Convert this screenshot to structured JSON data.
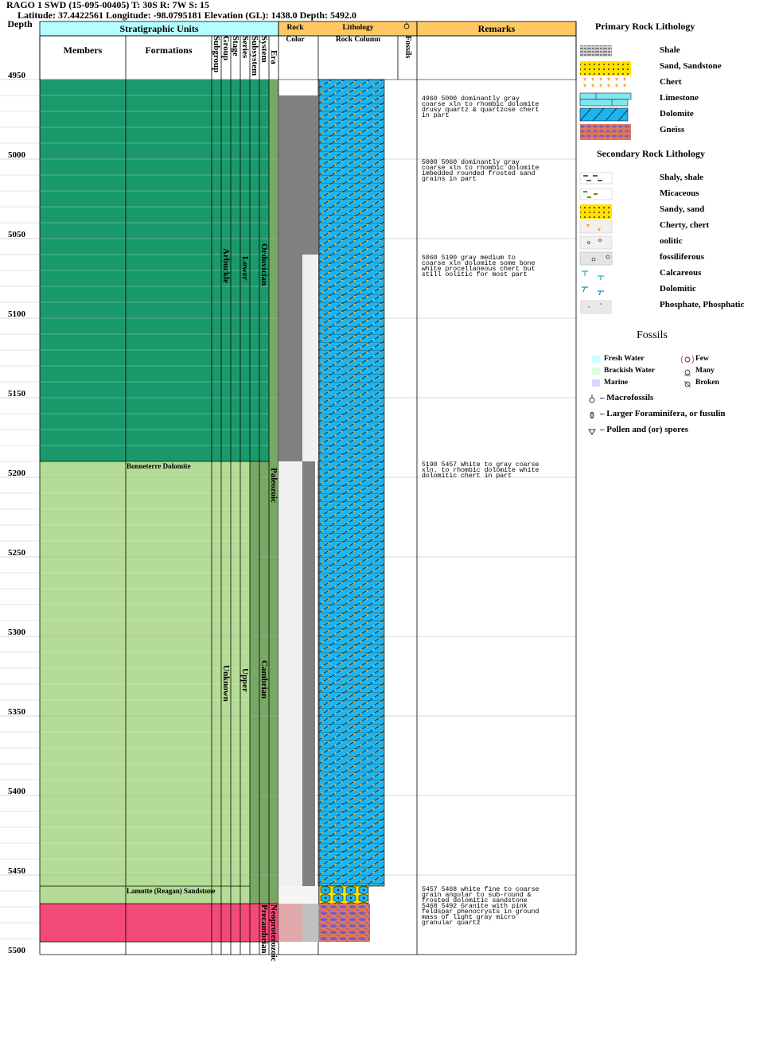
{
  "header": {
    "well_line": "RAGO 1 SWD (15-095-00405) T: 30S R: 7W S: 15",
    "location_line": "Latitude: 37.4422561 Longitude: -98.0795181 Elevation (GL): 1438.0 Depth: 5492.0"
  },
  "columns": {
    "depth": "Depth",
    "strat_units": "Stratigraphic Units",
    "members": "Members",
    "formations": "Formations",
    "rank_subgroup": "Subgroup",
    "rank_group": "Group",
    "rank_stage": "Stage",
    "rank_series": "Series",
    "rank_subsystem": "Subsystem",
    "rank_system": "System",
    "rank_era": "Era",
    "rock_color_1": "Rock",
    "rock_color_2": "Color",
    "lithology": "Lithology",
    "rock_column": "Rock Column",
    "fossils": "Fossils",
    "remarks": "Remarks"
  },
  "depth_ticks": [
    "4950",
    "5000",
    "5050",
    "5100",
    "5150",
    "5200",
    "5250",
    "5300",
    "5350",
    "5400",
    "5450",
    "5500"
  ],
  "strat_labels": {
    "formation_bonneterre": "Bonneterre Dolomite",
    "formation_lamotte": "Lamotte (Reagan) Sandstone",
    "group_arbuckle": "Arbuckle",
    "group_unknown": "Unknown",
    "series_lower": "Lower",
    "series_upper": "Upper",
    "system_ordovician": "Ordovician",
    "system_cambrian": "Cambrian",
    "era_paleozoic": "Paleozoic",
    "era_neoproterozoic": "Neoproterozoic",
    "system_precambrian": "Precambrian"
  },
  "remarks": [
    {
      "id": "r1",
      "text": "4960 5000 dominantly gray\ncoarse xln to rhombic dolomite\ndrusy quartz & quartzose chert\nin part"
    },
    {
      "id": "r2",
      "text": "5000 5060 dominantly gray\ncoarse xln to rhombic dolomite\nimbedded rounded frosted sand\ngrains in part"
    },
    {
      "id": "r3",
      "text": "5060 5190 gray medium to\ncoarse xln dolomite some bone\nwhite procellaneous chert but\nstill oolitic for most part"
    },
    {
      "id": "r4",
      "text": "5190 5457 White to gray coarse\nxln. to rhombic dolomite white\ndolomitic chert in part"
    },
    {
      "id": "r5",
      "text": "5457 5468 white fine to coarse\ngrain angular to sub-round &\nfrosted dolomitic sandstone"
    },
    {
      "id": "r6",
      "text": "5468 5492 Granite with pink\nfeldspar phenocrysts in ground\nmass of light gray micro\ngranular quartz"
    }
  ],
  "legend": {
    "primary_title": "Primary Rock Lithology",
    "primary": [
      "Shale",
      "Sand, Sandstone",
      "Chert",
      "Limestone",
      "Dolomite",
      "Gneiss"
    ],
    "secondary_title": "Secondary Rock Lithology",
    "secondary": [
      "Shaly, shale",
      "Micaceous",
      "Sandy, sand",
      "Cherty, chert",
      "oolitic",
      "fossiliferous",
      "Calcareous",
      "Dolomitic",
      "Phosphate, Phosphatic"
    ],
    "fossils_title": "Fossils",
    "environments": [
      "Fresh Water",
      "Brackish Water",
      "Marine"
    ],
    "abundance": [
      "Few",
      "Many",
      "Broken"
    ],
    "fossil_types": [
      "– Macrofossils",
      "– Larger Foraminifera, or fusulin",
      "– Pollen and (or) spores"
    ]
  },
  "colors": {
    "strat_dark_green": "#1a9a6c",
    "strat_light_green": "#b4dc96",
    "strat_olive": "#78a864",
    "precambrian_pink": "#f44a78",
    "header_cyan": "#b3ffff",
    "header_orange": "#ffc864",
    "dolomite_blue": "#1eb4f0",
    "rock_gray": "#808080"
  }
}
